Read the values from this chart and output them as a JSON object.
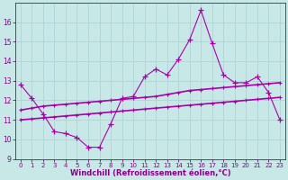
{
  "x": [
    0,
    1,
    2,
    3,
    4,
    5,
    6,
    7,
    8,
    9,
    10,
    11,
    12,
    13,
    14,
    15,
    16,
    17,
    18,
    19,
    20,
    21,
    22,
    23
  ],
  "line_zigzag": [
    12.8,
    12.1,
    11.3,
    10.4,
    10.3,
    10.1,
    9.6,
    9.6,
    10.8,
    12.1,
    12.2,
    13.2,
    13.6,
    13.3,
    14.1,
    15.1,
    16.6,
    14.9,
    13.3,
    12.9,
    12.9,
    13.2,
    12.4,
    11.0
  ],
  "line_upper": [
    11.5,
    11.6,
    11.7,
    11.75,
    11.8,
    11.85,
    11.9,
    11.95,
    12.0,
    12.05,
    12.1,
    12.15,
    12.2,
    12.3,
    12.4,
    12.5,
    12.55,
    12.6,
    12.65,
    12.7,
    12.75,
    12.8,
    12.85,
    12.9
  ],
  "line_lower": [
    11.0,
    11.05,
    11.1,
    11.15,
    11.2,
    11.25,
    11.3,
    11.35,
    11.4,
    11.45,
    11.5,
    11.55,
    11.6,
    11.65,
    11.7,
    11.75,
    11.8,
    11.85,
    11.9,
    11.95,
    12.0,
    12.05,
    12.1,
    12.15
  ],
  "bg_color": "#c8e8e8",
  "grid_color": "#aed4d4",
  "line_color": "#aa00aa",
  "line_color2": "#990099",
  "ylim": [
    9,
    17
  ],
  "xlim_min": -0.5,
  "xlim_max": 23.5,
  "yticks": [
    9,
    10,
    11,
    12,
    13,
    14,
    15,
    16
  ],
  "xticks": [
    0,
    1,
    2,
    3,
    4,
    5,
    6,
    7,
    8,
    9,
    10,
    11,
    12,
    13,
    14,
    15,
    16,
    17,
    18,
    19,
    20,
    21,
    22,
    23
  ],
  "xlabel": "Windchill (Refroidissement éolien,°C)",
  "tick_color": "#880088",
  "xlabel_color": "#880088"
}
